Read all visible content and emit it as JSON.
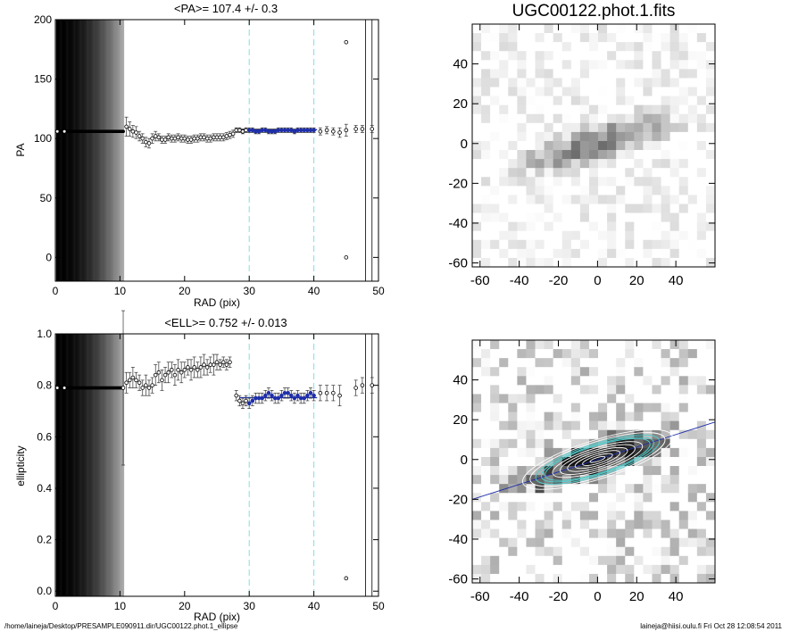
{
  "footer": {
    "left": "/home/laineja/Desktop/PRESAMPLE090911.dir/UGC00122.phot.1_ellipse",
    "right": "laineja@hiisi.oulu.fi  Fri Oct 28 12:08:54 2011"
  },
  "colors": {
    "fit": "#1f2fa8",
    "marker": "#7fe0e0",
    "contour": "#ffffff",
    "contour_alt": "#4fd0d0"
  },
  "chart_data": [
    {
      "id": "pa",
      "type": "scatter",
      "title": "<PA>= 107.4 +/-   0.3",
      "xlabel": "RAD (pix)",
      "ylabel": "PA",
      "xlim": [
        0,
        50
      ],
      "ylim": [
        -20,
        200
      ],
      "xticks": [
        0,
        10,
        20,
        30,
        40,
        50
      ],
      "yticks": [
        0,
        50,
        100,
        150,
        200
      ],
      "vlines_dashed": [
        30,
        40
      ],
      "vlines_solid": [
        48,
        49
      ],
      "fit": {
        "x": [
          28.5,
          40.5
        ],
        "y": 107.4
      },
      "points": {
        "x": [
          0.3,
          1.4,
          11,
          11.5,
          12,
          12.5,
          13,
          13.5,
          14,
          14.5,
          15,
          15.5,
          16,
          16.5,
          17,
          17.5,
          18,
          18.5,
          19,
          19.5,
          20,
          20.5,
          21,
          21.5,
          22,
          22.5,
          23,
          23.5,
          24,
          24.5,
          25,
          25.5,
          26,
          26.5,
          27,
          27.5,
          28,
          28.5,
          29,
          29.5,
          30,
          30.5,
          31,
          31.5,
          32,
          32.5,
          33,
          33.5,
          34,
          34.5,
          35,
          35.5,
          36,
          36.5,
          37,
          37.5,
          38,
          38.5,
          39,
          39.5,
          40,
          41,
          42,
          43,
          44,
          45,
          45,
          45,
          46.5,
          47.5,
          49
        ],
        "y": [
          106,
          106,
          110,
          108,
          106,
          105,
          102,
          100,
          97,
          96,
          100,
          102,
          101,
          99,
          99,
          101,
          100,
          100,
          101,
          100,
          100,
          99,
          99,
          100,
          100,
          101,
          101,
          100,
          100,
          101,
          101,
          101,
          101,
          102,
          103,
          104,
          107,
          107,
          106,
          107,
          107,
          107,
          106,
          106,
          107,
          107,
          106,
          106,
          106,
          107,
          107,
          107,
          107,
          107,
          106,
          107,
          107,
          107,
          107,
          107,
          107,
          106,
          107,
          106,
          105,
          107,
          181,
          0,
          108,
          108,
          108
        ],
        "err": [
          0,
          0,
          8,
          6,
          5,
          5,
          4,
          4,
          4,
          4,
          4,
          4,
          3,
          3,
          3,
          3,
          3,
          3,
          3,
          3,
          3,
          3,
          3,
          3,
          3,
          3,
          3,
          3,
          3,
          3,
          3,
          3,
          3,
          3,
          3,
          3,
          2,
          2,
          2,
          2,
          2,
          2,
          2,
          2,
          2,
          2,
          2,
          2,
          2,
          2,
          2,
          2,
          2,
          2,
          2,
          2,
          2,
          2,
          2,
          2,
          2,
          3,
          3,
          3,
          4,
          5,
          0,
          0,
          3,
          3,
          3
        ]
      }
    },
    {
      "id": "ell",
      "type": "scatter",
      "title": "<ELL>= 0.752 +/-  0.013",
      "xlabel": "RAD (pix)",
      "ylabel": "ellipticity",
      "xlim": [
        0,
        50
      ],
      "ylim": [
        -0.02,
        1.0
      ],
      "xticks": [
        0,
        10,
        20,
        30,
        40,
        50
      ],
      "yticks": [
        0.0,
        0.2,
        0.4,
        0.6,
        0.8,
        1.0
      ],
      "vlines_dashed": [
        30,
        40
      ],
      "vlines_solid": [
        48,
        49
      ],
      "fit": {
        "x": [
          28.5,
          40.5
        ],
        "y": 0.752
      },
      "points": {
        "x": [
          0.3,
          1.4,
          10.5,
          11,
          11.5,
          12,
          12.5,
          13,
          13.5,
          14,
          14.5,
          15,
          15.5,
          16,
          16.5,
          17,
          17.5,
          18,
          18.5,
          19,
          19.5,
          20,
          20.5,
          21,
          21.5,
          22,
          22.5,
          23,
          23.5,
          24,
          24.5,
          25,
          25.5,
          26,
          26.5,
          27,
          28,
          28.5,
          29,
          29.5,
          30,
          30.5,
          31,
          31.5,
          32,
          32.5,
          33,
          33.5,
          34,
          34.5,
          35,
          35.5,
          36,
          36.5,
          37,
          37.5,
          38,
          38.5,
          39,
          39.5,
          40,
          41,
          42,
          43,
          44,
          45,
          46.5,
          47.5,
          49
        ],
        "y": [
          0.79,
          0.79,
          0.79,
          0.81,
          0.82,
          0.83,
          0.82,
          0.81,
          0.79,
          0.8,
          0.79,
          0.8,
          0.84,
          0.85,
          0.82,
          0.84,
          0.85,
          0.86,
          0.84,
          0.86,
          0.85,
          0.86,
          0.87,
          0.86,
          0.87,
          0.86,
          0.87,
          0.88,
          0.87,
          0.88,
          0.88,
          0.89,
          0.88,
          0.89,
          0.88,
          0.89,
          0.76,
          0.74,
          0.73,
          0.74,
          0.73,
          0.74,
          0.75,
          0.75,
          0.75,
          0.76,
          0.77,
          0.76,
          0.75,
          0.75,
          0.76,
          0.77,
          0.77,
          0.76,
          0.75,
          0.76,
          0.75,
          0.75,
          0.76,
          0.77,
          0.76,
          0.77,
          0.77,
          0.77,
          0.76,
          0.05,
          0.79,
          0.8,
          0.8
        ],
        "err": [
          0,
          0,
          0.3,
          0.04,
          0.03,
          0.04,
          0.03,
          0.03,
          0.03,
          0.04,
          0.03,
          0.03,
          0.04,
          0.04,
          0.04,
          0.03,
          0.04,
          0.03,
          0.04,
          0.04,
          0.04,
          0.03,
          0.03,
          0.04,
          0.04,
          0.03,
          0.04,
          0.04,
          0.03,
          0.03,
          0.04,
          0.03,
          0.02,
          0.02,
          0.02,
          0.02,
          0.02,
          0.02,
          0.02,
          0.02,
          0.02,
          0.02,
          0.02,
          0.02,
          0.02,
          0.02,
          0.02,
          0.02,
          0.02,
          0.02,
          0.02,
          0.02,
          0.02,
          0.02,
          0.02,
          0.02,
          0.02,
          0.02,
          0.02,
          0.02,
          0.02,
          0.03,
          0.03,
          0.03,
          0.04,
          0,
          0.03,
          0.03,
          0.03
        ]
      }
    },
    {
      "id": "img1",
      "type": "heatmap",
      "title": "UGC00122.phot.1.fits",
      "xlim": [
        -64,
        60
      ],
      "ylim": [
        -62,
        60
      ],
      "xticks": [
        -60,
        -40,
        -20,
        0,
        20,
        40
      ],
      "yticks": [
        -60,
        -40,
        -20,
        0,
        20,
        40
      ],
      "colormap": "inverted-gray"
    },
    {
      "id": "img2",
      "type": "heatmap",
      "title": "",
      "xlim": [
        -64,
        60
      ],
      "ylim": [
        -62,
        60
      ],
      "xticks": [
        -60,
        -40,
        -20,
        0,
        20,
        40
      ],
      "yticks": [
        -60,
        -40,
        -20,
        0,
        20,
        40
      ],
      "colormap": "inverted-gray",
      "overlay": {
        "position_angle": 107.4,
        "ellipticity": 0.752,
        "ellipse_semimajor": [
          4,
          8,
          12,
          16,
          20,
          24,
          28,
          30,
          33,
          36,
          40
        ]
      }
    }
  ]
}
